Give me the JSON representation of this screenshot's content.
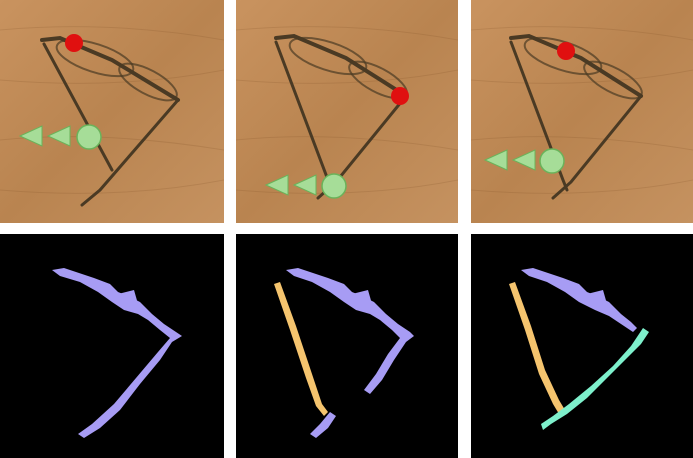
{
  "figure": {
    "rows": [
      {
        "row": "photos",
        "panels": [
          {
            "id": "photo-1",
            "description_icons": [
              "negative-click-icon",
              "positive-click-icon"
            ]
          },
          {
            "id": "photo-2",
            "description_icons": [
              "negative-click-icon",
              "positive-click-icon"
            ]
          },
          {
            "id": "photo-3",
            "description_icons": [
              "negative-click-icon",
              "positive-click-icon"
            ]
          }
        ]
      },
      {
        "row": "masks",
        "panels": [
          {
            "id": "mask-1",
            "segments": [
              "lens-frame-and-right-temple"
            ]
          },
          {
            "id": "mask-2",
            "segments": [
              "lens-frame-and-right-temple",
              "left-temple"
            ]
          },
          {
            "id": "mask-3",
            "segments": [
              "lens-frame",
              "left-temple",
              "right-temple"
            ]
          }
        ]
      }
    ]
  },
  "colors": {
    "wood": "#c48f5c",
    "wood_dark": "#a9743f",
    "frame": "#4a3a24",
    "negative_click": "#e01010",
    "positive_click": "#a6dd98",
    "positive_stroke": "#6ab35a",
    "mask_purple": "#a79cf4",
    "mask_orange": "#f5c46e",
    "mask_cyan": "#7ef0cc",
    "mask_bg": "#000000"
  }
}
